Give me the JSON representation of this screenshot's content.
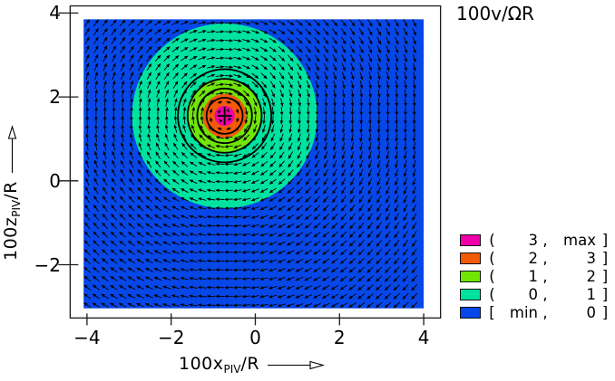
{
  "title": "100v/ΩR",
  "colors": {
    "magenta": "#ef00a8",
    "orange": "#f25a07",
    "chartreuse": "#70e607",
    "teal": "#00e3a0",
    "blue": "#0747e8",
    "arrow": "#000000",
    "frame": "#1a1a1a"
  },
  "x_axis": {
    "label_main": "100x",
    "label_sub": "PIV",
    "label_suffix": "/R",
    "tick_labels": [
      "−4",
      "−2",
      "0",
      "2",
      "4"
    ]
  },
  "z_axis": {
    "label_main": "100z",
    "label_sub": "PIV",
    "label_suffix": "/R",
    "tick_labels": [
      "4",
      "2",
      "0",
      "−2"
    ]
  },
  "legend": {
    "rows": [
      {
        "color_name": "magenta",
        "open_bracket": "(",
        "lower": "3",
        "comma": ",",
        "upper": "max",
        "close_bracket": "]"
      },
      {
        "color_name": "orange",
        "open_bracket": "(",
        "lower": "2",
        "comma": ",",
        "upper": "3",
        "close_bracket": "]"
      },
      {
        "color_name": "chartreuse",
        "open_bracket": "(",
        "lower": "1",
        "comma": ",",
        "upper": "2",
        "close_bracket": "]"
      },
      {
        "color_name": "teal",
        "open_bracket": "(",
        "lower": "0",
        "comma": ",",
        "upper": "1",
        "close_bracket": "]"
      },
      {
        "color_name": "blue",
        "open_bracket": "[",
        "lower": "min",
        "comma": ",",
        "upper": "0",
        "close_bracket": "]"
      }
    ]
  },
  "chart_data": {
    "type": "quiver_contour",
    "title": "100v/ΩR",
    "xlabel": "100x_PIV/R →",
    "ylabel": "100z_PIV/R →",
    "scalar_name": "100v/ΩR",
    "x_ticks": [
      -4,
      -2,
      0,
      2,
      4
    ],
    "z_ticks": [
      4,
      2,
      0,
      -2
    ],
    "x_axis_range": [
      -4.4,
      4.4
    ],
    "z_axis_range": [
      -3.27,
      4.17
    ],
    "field_x_range": [
      -4.08,
      4.0
    ],
    "field_z_range": [
      -3.04,
      3.85
    ],
    "grid_on": false,
    "legend_position": "lower-right-outside",
    "vortex_center": {
      "x": -0.73,
      "z": 1.55
    },
    "rotation_sense": "clockwise",
    "center_marker": "+",
    "fill_regions": [
      {
        "range": "(3, max]",
        "color_name": "magenta",
        "outer_radius": 0.24
      },
      {
        "range": "(2, 3]",
        "color_name": "orange",
        "outer_radius": 0.52
      },
      {
        "range": "(1, 2]",
        "color_name": "chartreuse",
        "outer_radius": 0.86
      },
      {
        "range": "(0, 1]",
        "color_name": "teal",
        "outer_radius": 2.2
      },
      {
        "range": "[min, 0]",
        "color_name": "blue",
        "outer_radius": null
      }
    ],
    "streamline_circle_radii": [
      0.43,
      0.65,
      0.88,
      1.11
    ],
    "quiver": {
      "grid_spacing": 0.21,
      "max_arrow_length": 0.2,
      "core_radius": 0.56
    }
  }
}
